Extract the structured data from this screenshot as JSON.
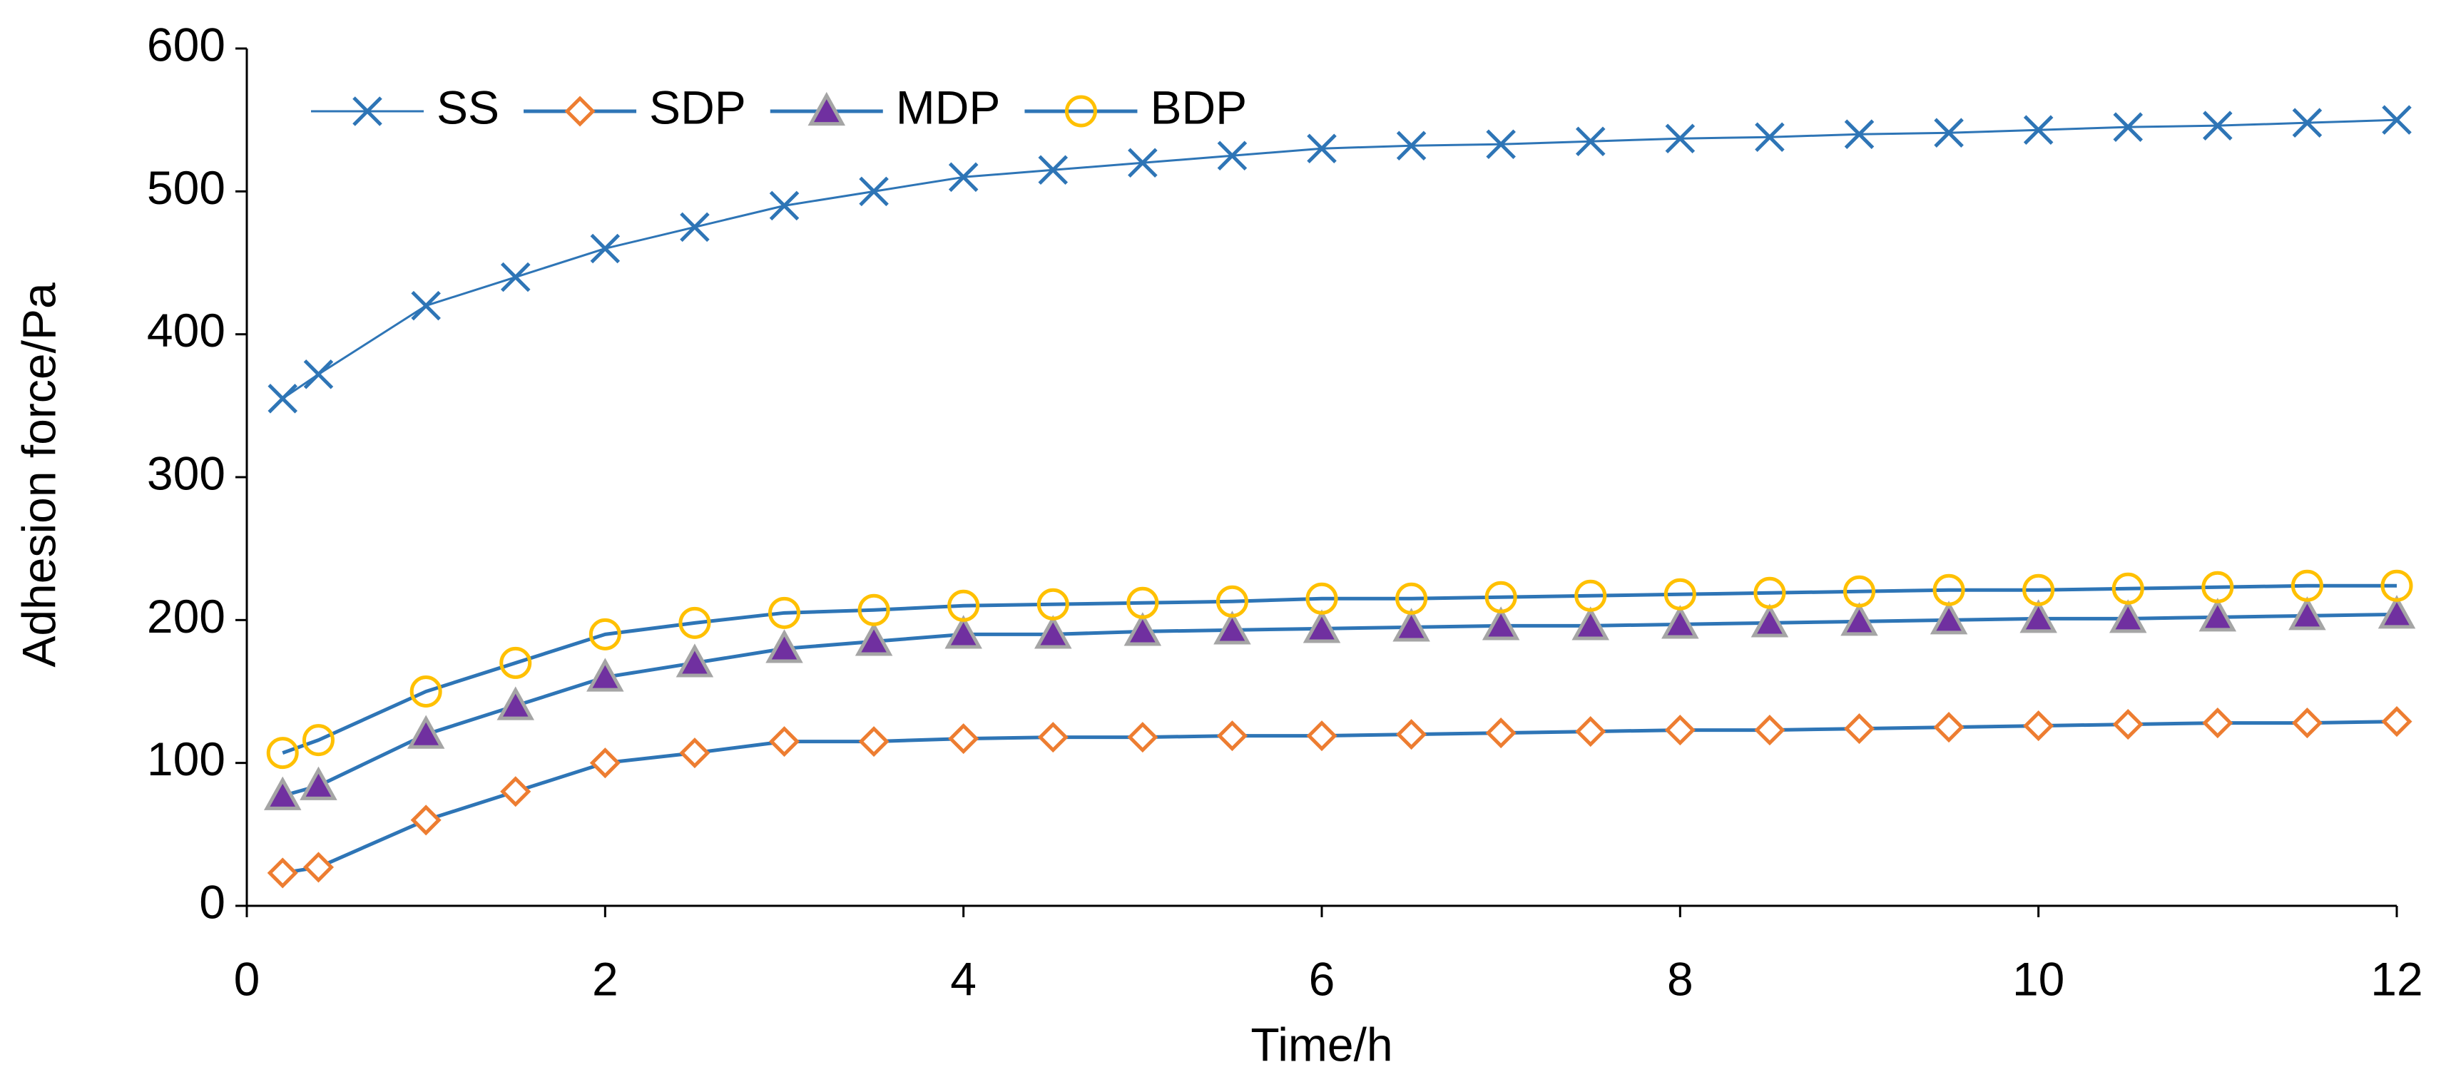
{
  "chart_data": {
    "type": "line",
    "xlabel": "Time/h",
    "ylabel": "Adhesion force/Pa",
    "x": [
      0.2,
      0.4,
      1,
      1.5,
      2,
      2.5,
      3,
      3.5,
      4,
      4.5,
      5,
      5.5,
      6,
      6.5,
      7,
      7.5,
      8,
      8.5,
      9,
      9.5,
      10,
      10.5,
      11,
      11.5,
      12
    ],
    "series": [
      {
        "name": "SS",
        "color": "#2e75b6",
        "values": [
          355,
          372,
          420,
          440,
          460,
          475,
          490,
          500,
          510,
          515,
          520,
          525,
          530,
          532,
          533,
          535,
          537,
          538,
          540,
          541,
          543,
          545,
          546,
          548,
          550
        ]
      },
      {
        "name": "SDP",
        "color": "#ed7d31",
        "values": [
          23,
          27,
          60,
          80,
          100,
          107,
          115,
          115,
          117,
          118,
          118,
          119,
          119,
          120,
          121,
          122,
          123,
          123,
          124,
          125,
          126,
          127,
          128,
          128,
          129
        ]
      },
      {
        "name": "MDP",
        "color": "#7030a0",
        "values": [
          77,
          84,
          120,
          140,
          160,
          170,
          180,
          185,
          190,
          190,
          192,
          193,
          194,
          195,
          196,
          196,
          197,
          198,
          199,
          200,
          201,
          201,
          202,
          203,
          204
        ]
      },
      {
        "name": "BDP",
        "color": "#ffc000",
        "values": [
          107,
          116,
          150,
          170,
          190,
          198,
          205,
          207,
          210,
          211,
          212,
          213,
          215,
          215,
          216,
          217,
          218,
          219,
          220,
          221,
          221,
          222,
          223,
          224,
          224
        ]
      }
    ],
    "xlim": [
      0,
      12
    ],
    "xticks": [
      0,
      2,
      4,
      6,
      8,
      10,
      12
    ],
    "ylim": [
      0,
      600
    ],
    "yticks": [
      0,
      100,
      200,
      300,
      400,
      500,
      600
    ],
    "grid": false,
    "legend": "top-left"
  }
}
